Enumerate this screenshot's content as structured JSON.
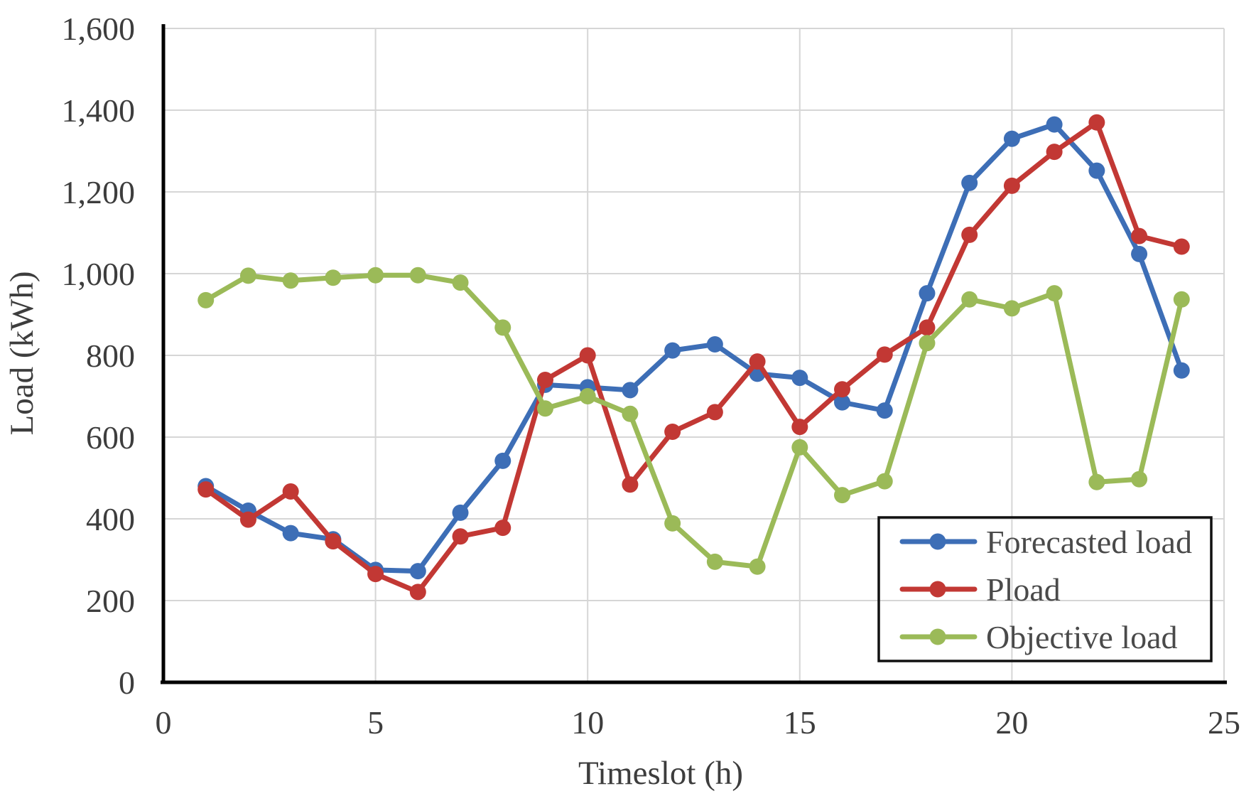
{
  "chart_data": {
    "type": "line",
    "title": "",
    "xlabel": "Timeslot (h)",
    "ylabel": "Load (kWh)",
    "x": [
      1,
      2,
      3,
      4,
      5,
      6,
      7,
      8,
      9,
      10,
      11,
      12,
      13,
      14,
      15,
      16,
      17,
      18,
      19,
      20,
      21,
      22,
      23,
      24
    ],
    "series": [
      {
        "name": "Forecasted load",
        "color": "#3d6eb6",
        "values": [
          480,
          420,
          365,
          350,
          275,
          272,
          415,
          542,
          728,
          722,
          715,
          812,
          827,
          755,
          745,
          685,
          665,
          952,
          1222,
          1330,
          1365,
          1252,
          1048,
          763
        ]
      },
      {
        "name": "Pload",
        "color": "#c23834",
        "values": [
          472,
          398,
          467,
          345,
          265,
          221,
          357,
          378,
          740,
          800,
          484,
          613,
          661,
          785,
          625,
          717,
          802,
          868,
          1095,
          1215,
          1298,
          1370,
          1092,
          1066
        ]
      },
      {
        "name": "Objective load",
        "color": "#9bba58",
        "values": [
          935,
          995,
          983,
          990,
          996,
          996,
          978,
          868,
          670,
          700,
          657,
          389,
          295,
          283,
          575,
          458,
          492,
          830,
          937,
          915,
          952,
          490,
          497,
          937
        ]
      }
    ],
    "xlim": [
      0,
      25
    ],
    "ylim": [
      0,
      1600
    ],
    "xticks": [
      "0",
      "5",
      "10",
      "15",
      "20",
      "25"
    ],
    "yticks": [
      "0",
      "200",
      "400",
      "600",
      "800",
      "1,000",
      "1,200",
      "1,400",
      "1,600"
    ],
    "grid": true,
    "legend_position": "bottom-right"
  },
  "style": {
    "grid_color": "#d6d6d6",
    "axis_color": "#000000",
    "text_color": "#3d3d3d"
  }
}
